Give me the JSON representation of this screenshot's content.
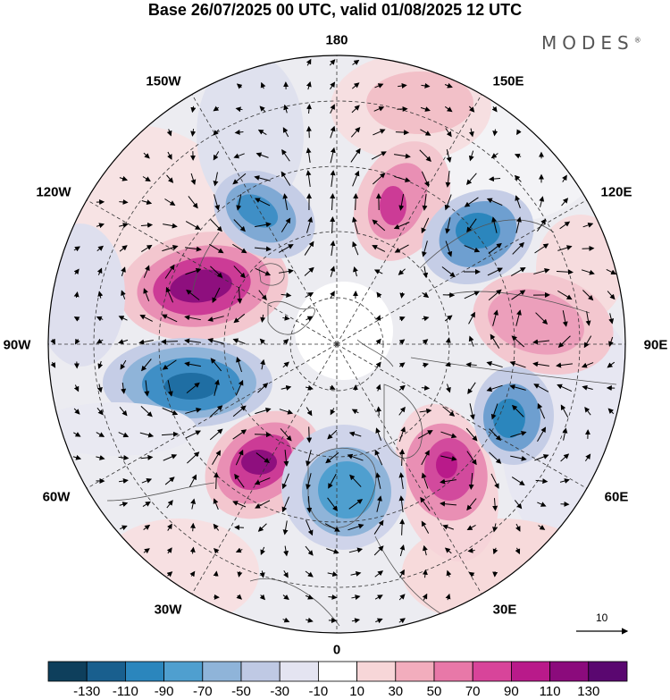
{
  "title": "Base 26/07/2025 00 UTC, valid 01/08/2025 12 UTC",
  "brand": "MODES",
  "brand_mark": "®",
  "longitude_labels": {
    "lon_180": "180",
    "lon_150e": "150E",
    "lon_120e": "120E",
    "lon_90e": "90E",
    "lon_60e": "60E",
    "lon_30e": "30E",
    "lon_0": "0",
    "lon_30w": "30W",
    "lon_60w": "60W",
    "lon_90w": "90W",
    "lon_120w": "120W",
    "lon_150w": "150W"
  },
  "vector_scale": "10",
  "colorbar": {
    "ticks": [
      "-130",
      "-110",
      "-90",
      "-70",
      "-50",
      "-30",
      "-10",
      "10",
      "30",
      "50",
      "70",
      "90",
      "110",
      "130"
    ],
    "colors": [
      "#0e3f5c",
      "#195f8e",
      "#2b86bd",
      "#4f9fcf",
      "#8fb4d9",
      "#bfc9e4",
      "#e4e4f1",
      "#ffffff",
      "#f7d6d8",
      "#f2adbd",
      "#e878a8",
      "#d8449a",
      "#b91a8a",
      "#8b0b7c",
      "#5a0770"
    ]
  }
}
